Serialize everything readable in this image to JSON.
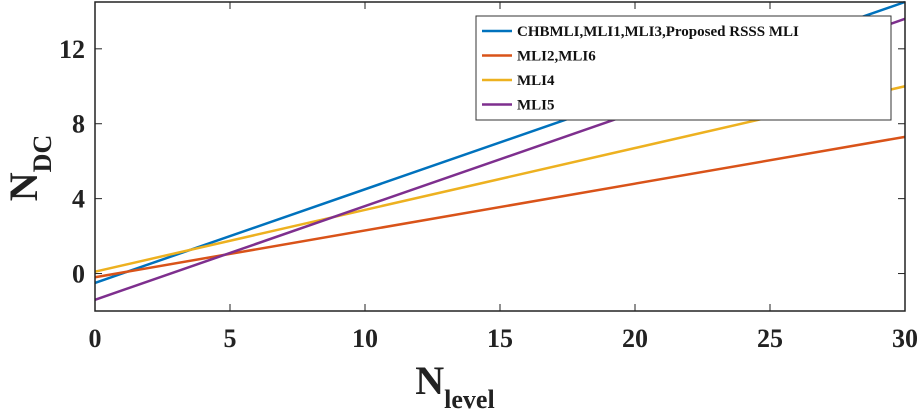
{
  "chart_data": {
    "type": "line",
    "title": "",
    "xlabel": "N",
    "xlabel_sub": "level",
    "ylabel": "N",
    "ylabel_sub": "DC",
    "xlim": [
      0,
      30
    ],
    "ylim": [
      -2,
      14.5
    ],
    "xticks": [
      0,
      5,
      10,
      15,
      20,
      25,
      30
    ],
    "yticks": [
      0,
      4,
      8,
      12
    ],
    "grid": false,
    "legend_position": "top-right",
    "series": [
      {
        "name": "CHBMLI,MLI1,MLI3,Proposed RSSS MLI",
        "color": "#0072BD",
        "x": [
          0,
          30
        ],
        "y": [
          -0.5,
          14.5
        ]
      },
      {
        "name": "MLI2,MLI6",
        "color": "#D95319",
        "x": [
          0,
          30
        ],
        "y": [
          -0.2,
          7.3
        ]
      },
      {
        "name": "MLI4",
        "color": "#EDB120",
        "x": [
          0,
          30
        ],
        "y": [
          0.1,
          10.0
        ]
      },
      {
        "name": "MLI5",
        "color": "#7E2F8E",
        "x": [
          0,
          30
        ],
        "y": [
          -1.4,
          13.6
        ]
      }
    ]
  }
}
